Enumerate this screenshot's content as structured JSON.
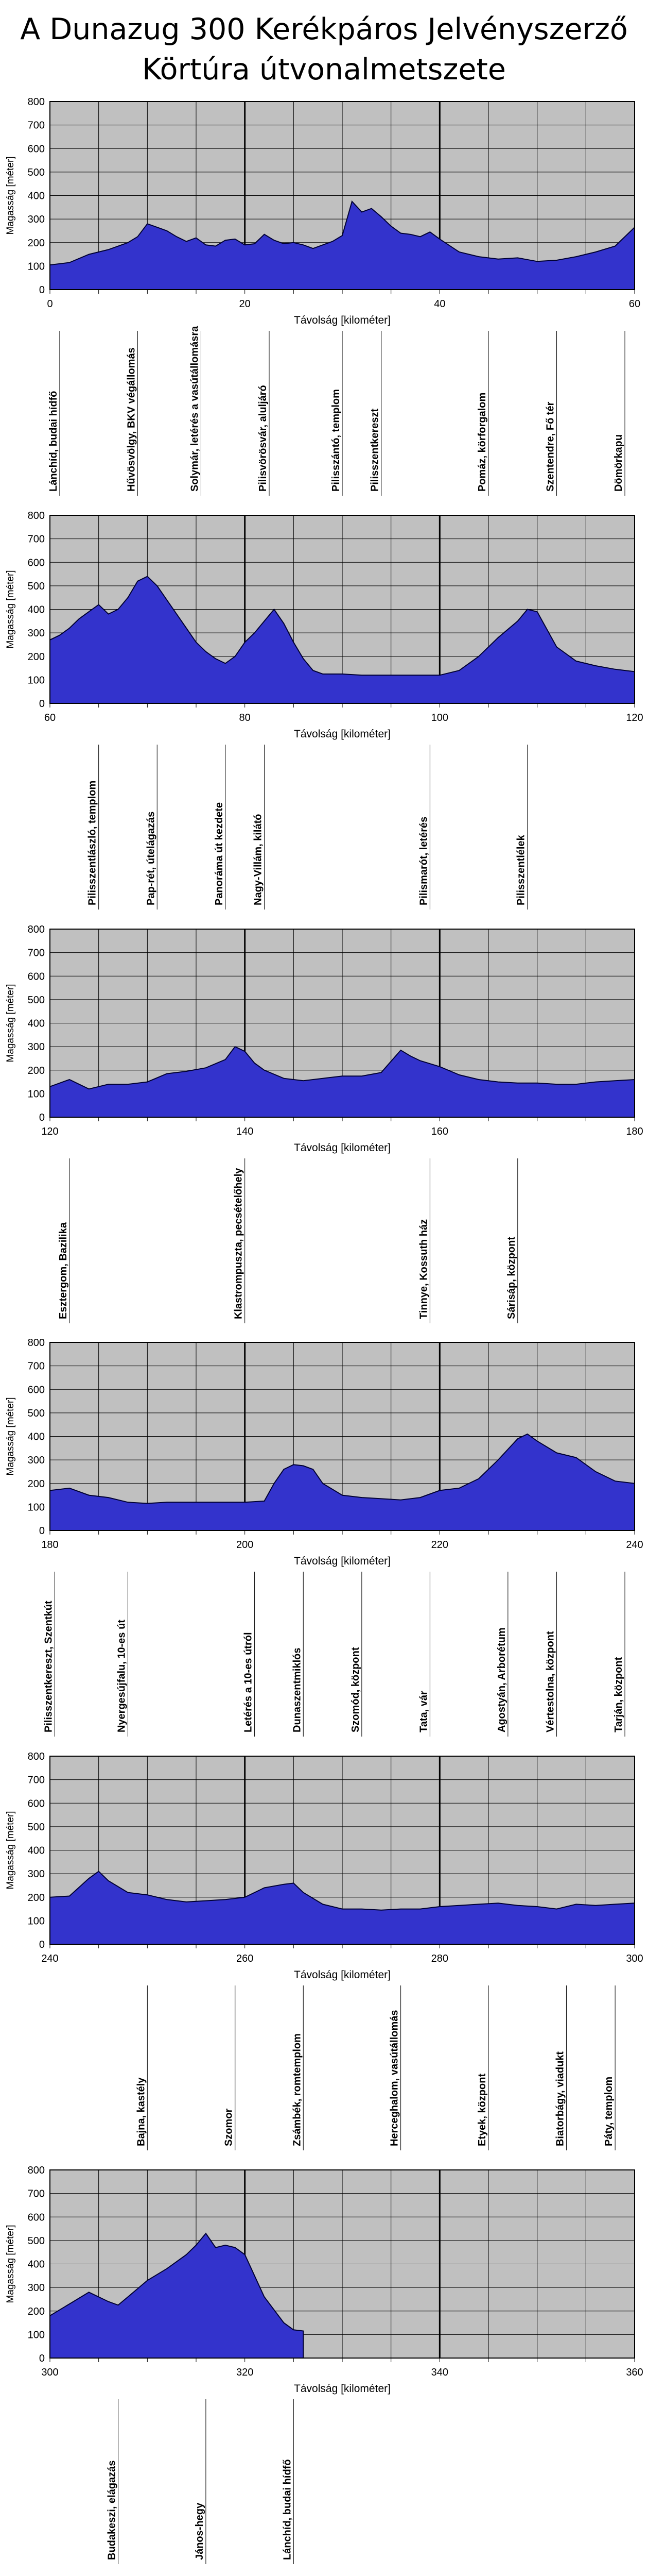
{
  "header": {
    "title_line1": "A Dunazug 300 Kerékpáros Jelvényszerző",
    "title_line2": "Körtúra útvonalmetszete"
  },
  "chart_data": [
    {
      "type": "area",
      "xlabel": "Távolság [kilométer]",
      "ylabel": "Magasság [méter]",
      "xlim": [
        0,
        60
      ],
      "ylim": [
        0,
        800
      ],
      "xticks": [
        0,
        20,
        40,
        60
      ],
      "yticks": [
        0,
        100,
        200,
        300,
        400,
        500,
        600,
        700,
        800
      ],
      "grid": true,
      "fill_color": "#3333cc",
      "plot_bg": "#c0c0c0",
      "x": [
        0,
        2,
        4,
        6,
        8,
        9,
        10,
        11,
        12,
        13,
        14,
        15,
        16,
        17,
        18,
        19,
        20,
        21,
        22,
        23,
        24,
        25,
        26,
        27,
        28,
        29,
        30,
        31,
        32,
        33,
        34,
        35,
        36,
        37,
        38,
        39,
        40,
        42,
        44,
        46,
        48,
        50,
        52,
        54,
        56,
        58,
        60
      ],
      "y": [
        105,
        115,
        150,
        170,
        200,
        225,
        280,
        265,
        250,
        225,
        205,
        220,
        190,
        185,
        210,
        215,
        190,
        195,
        235,
        210,
        195,
        200,
        190,
        175,
        190,
        205,
        230,
        375,
        330,
        345,
        310,
        270,
        240,
        235,
        225,
        245,
        215,
        160,
        140,
        130,
        135,
        120,
        125,
        140,
        160,
        185,
        265
      ],
      "annotations": [
        {
          "x": 1,
          "label": "Lánchíd, budai hídfő"
        },
        {
          "x": 9,
          "label": "Hűvösvölgy, BKV végállomás"
        },
        {
          "x": 15.5,
          "label": "Solymár, letérés a vasútállomásra"
        },
        {
          "x": 22.5,
          "label": "Pilisvörösvár, aluljáró"
        },
        {
          "x": 30,
          "label": "Pilisszántó, templom"
        },
        {
          "x": 34,
          "label": "Pilisszentkereszt"
        },
        {
          "x": 45,
          "label": "Pomáz, körforgalom"
        },
        {
          "x": 52,
          "label": "Szentendre, Fő tér"
        },
        {
          "x": 59,
          "label": "Dömörkapu"
        }
      ]
    },
    {
      "type": "area",
      "xlabel": "Távolság [kilométer]",
      "ylabel": "Magasság [méter]",
      "xlim": [
        60,
        120
      ],
      "ylim": [
        0,
        800
      ],
      "xticks": [
        60,
        80,
        100,
        120
      ],
      "yticks": [
        0,
        100,
        200,
        300,
        400,
        500,
        600,
        700,
        800
      ],
      "grid": true,
      "fill_color": "#3333cc",
      "plot_bg": "#c0c0c0",
      "x": [
        60,
        61,
        62,
        63,
        64,
        65,
        66,
        67,
        68,
        69,
        70,
        71,
        72,
        73,
        74,
        75,
        76,
        77,
        78,
        79,
        80,
        81,
        82,
        83,
        84,
        85,
        86,
        87,
        88,
        90,
        92,
        94,
        96,
        98,
        100,
        102,
        104,
        106,
        108,
        109,
        110,
        112,
        114,
        116,
        118,
        120
      ],
      "y": [
        270,
        290,
        320,
        360,
        390,
        420,
        380,
        400,
        450,
        520,
        540,
        500,
        440,
        380,
        320,
        260,
        220,
        190,
        170,
        200,
        260,
        300,
        350,
        400,
        340,
        260,
        190,
        140,
        125,
        125,
        120,
        120,
        120,
        120,
        120,
        140,
        200,
        280,
        350,
        400,
        390,
        240,
        180,
        160,
        145,
        135
      ],
      "annotations": [
        {
          "x": 65,
          "label": "Pilisszentlászló, templom"
        },
        {
          "x": 71,
          "label": "Pap-rét, útelágazás"
        },
        {
          "x": 78,
          "label": "Panoráma út kezdete"
        },
        {
          "x": 82,
          "label": "Nagy-Villám, kilátó"
        },
        {
          "x": 99,
          "label": "Pilismarót, letérés"
        },
        {
          "x": 109,
          "label": "Pilisszentlélek"
        }
      ]
    },
    {
      "type": "area",
      "xlabel": "Távolság [kilométer]",
      "ylabel": "Magasság [méter]",
      "xlim": [
        120,
        180
      ],
      "ylim": [
        0,
        800
      ],
      "xticks": [
        120,
        140,
        160,
        180
      ],
      "yticks": [
        0,
        100,
        200,
        300,
        400,
        500,
        600,
        700,
        800
      ],
      "grid": true,
      "fill_color": "#3333cc",
      "plot_bg": "#c0c0c0",
      "x": [
        120,
        122,
        124,
        126,
        128,
        130,
        132,
        134,
        136,
        138,
        139,
        140,
        141,
        142,
        144,
        146,
        148,
        150,
        152,
        154,
        156,
        157,
        158,
        160,
        162,
        164,
        166,
        168,
        170,
        172,
        174,
        176,
        178,
        180
      ],
      "y": [
        130,
        160,
        120,
        140,
        140,
        150,
        185,
        195,
        210,
        245,
        300,
        280,
        230,
        200,
        165,
        155,
        165,
        175,
        175,
        190,
        285,
        260,
        240,
        215,
        180,
        160,
        150,
        145,
        145,
        140,
        140,
        150,
        155,
        160
      ],
      "annotations": [
        {
          "x": 122,
          "label": "Esztergom, Bazilika"
        },
        {
          "x": 140,
          "label": "Klastrompuszta, pecsételőhely"
        },
        {
          "x": 159,
          "label": "Tinnye, Kossuth ház"
        },
        {
          "x": 168,
          "label": "Sárisáp, központ"
        }
      ]
    },
    {
      "type": "area",
      "xlabel": "Távolság [kilométer]",
      "ylabel": "Magasság [méter]",
      "xlim": [
        180,
        240
      ],
      "ylim": [
        0,
        800
      ],
      "xticks": [
        180,
        200,
        220,
        240
      ],
      "yticks": [
        0,
        100,
        200,
        300,
        400,
        500,
        600,
        700,
        800
      ],
      "grid": true,
      "fill_color": "#3333cc",
      "plot_bg": "#c0c0c0",
      "x": [
        180,
        182,
        184,
        186,
        188,
        190,
        192,
        194,
        196,
        198,
        200,
        202,
        203,
        204,
        205,
        206,
        207,
        208,
        210,
        212,
        214,
        216,
        218,
        220,
        222,
        224,
        226,
        228,
        229,
        230,
        232,
        234,
        236,
        238,
        240
      ],
      "y": [
        170,
        180,
        150,
        140,
        120,
        115,
        120,
        120,
        120,
        120,
        120,
        125,
        200,
        260,
        280,
        275,
        260,
        200,
        150,
        140,
        135,
        130,
        140,
        170,
        180,
        220,
        300,
        390,
        410,
        380,
        330,
        310,
        250,
        210,
        200
      ],
      "annotations": [
        {
          "x": 180.5,
          "label": "Pilisszentkereszt, Szentkút"
        },
        {
          "x": 188,
          "label": "Nyergesújfalu, 10-es út"
        },
        {
          "x": 201,
          "label": "Letérés a 10-es útról"
        },
        {
          "x": 206,
          "label": "Dunaszentmiklós"
        },
        {
          "x": 212,
          "label": "Szomód, központ"
        },
        {
          "x": 219,
          "label": "Tata, vár"
        },
        {
          "x": 227,
          "label": "Agostyán, Arborétum"
        },
        {
          "x": 232,
          "label": "Vértestolna, központ"
        },
        {
          "x": 239,
          "label": "Tarján, központ"
        }
      ]
    },
    {
      "type": "area",
      "xlabel": "Távolság [kilométer]",
      "ylabel": "Magasság [méter]",
      "xlim": [
        240,
        300
      ],
      "ylim": [
        0,
        800
      ],
      "xticks": [
        240,
        260,
        280,
        300
      ],
      "yticks": [
        0,
        100,
        200,
        300,
        400,
        500,
        600,
        700,
        800
      ],
      "grid": true,
      "fill_color": "#3333cc",
      "plot_bg": "#c0c0c0",
      "x": [
        240,
        242,
        244,
        245,
        246,
        248,
        250,
        252,
        254,
        256,
        258,
        260,
        262,
        264,
        265,
        266,
        268,
        270,
        272,
        274,
        276,
        278,
        280,
        282,
        284,
        286,
        288,
        290,
        292,
        294,
        296,
        298,
        300
      ],
      "y": [
        200,
        205,
        280,
        310,
        270,
        220,
        210,
        190,
        180,
        185,
        190,
        200,
        240,
        255,
        260,
        220,
        170,
        150,
        150,
        145,
        150,
        150,
        160,
        165,
        170,
        175,
        165,
        160,
        150,
        170,
        165,
        170,
        175
      ],
      "annotations": [
        {
          "x": 250,
          "label": "Bajna, kastély"
        },
        {
          "x": 259,
          "label": "Szomor"
        },
        {
          "x": 266,
          "label": "Zsámbék, romtemplom"
        },
        {
          "x": 276,
          "label": "Herceghalom, vasútállomás"
        },
        {
          "x": 285,
          "label": "Etyek, központ"
        },
        {
          "x": 293,
          "label": "Biatorbágy, viadukt"
        },
        {
          "x": 298,
          "label": "Páty, templom"
        }
      ]
    },
    {
      "type": "area",
      "xlabel": "Távolság [kilométer]",
      "ylabel": "Magasság [méter]",
      "xlim": [
        300,
        360
      ],
      "ylim": [
        0,
        800
      ],
      "xticks": [
        300,
        320,
        340,
        360
      ],
      "yticks": [
        0,
        100,
        200,
        300,
        400,
        500,
        600,
        700,
        800
      ],
      "grid": true,
      "fill_color": "#3333cc",
      "plot_bg": "#c0c0c0",
      "x": [
        300,
        302,
        304,
        306,
        307,
        308,
        310,
        312,
        314,
        315,
        316,
        317,
        318,
        319,
        320,
        322,
        324,
        325,
        326
      ],
      "y": [
        180,
        230,
        280,
        240,
        225,
        260,
        330,
        380,
        440,
        480,
        530,
        470,
        480,
        470,
        440,
        260,
        150,
        120,
        115
      ],
      "annotations": [
        {
          "x": 307,
          "label": "Budakeszi, elágazás"
        },
        {
          "x": 316,
          "label": "János-hegy"
        },
        {
          "x": 325,
          "label": "Lánchíd, budai hídfő"
        }
      ]
    }
  ]
}
